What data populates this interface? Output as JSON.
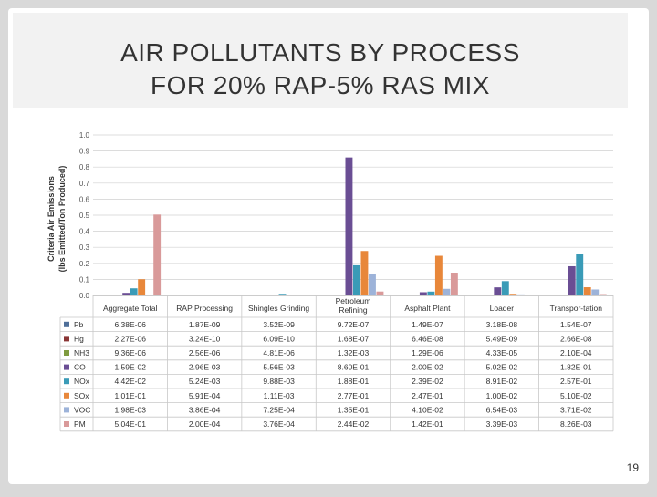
{
  "slide": {
    "title_line1": "AIR POLLUTANTS BY PROCESS",
    "title_line2": "FOR 20% RAP-5% RAS MIX",
    "page_number": "19"
  },
  "chart_data": {
    "type": "bar",
    "ylabel_line1": "Criteria Air Emissions",
    "ylabel_line2": "(lbs Emitted/Ton Produced)",
    "ylim": [
      0,
      1.0
    ],
    "yticks": [
      "0.0",
      "0.1",
      "0.2",
      "0.3",
      "0.4",
      "0.5",
      "0.6",
      "0.7",
      "0.8",
      "0.9",
      "1.0"
    ],
    "grid": true,
    "legend": "table-left",
    "categories": [
      "Aggregate Total",
      "RAP Processing",
      "Shingles Grinding",
      "Petroleum Refining",
      "Asphalt Plant",
      "Loader",
      "Transpor-tation"
    ],
    "series": [
      {
        "name": "Pb",
        "color": "#4f6f99",
        "values": [
          6.38e-06,
          1.87e-09,
          3.52e-09,
          9.72e-07,
          1.49e-07,
          3.18e-08,
          1.54e-07
        ],
        "labels": [
          "6.38E-06",
          "1.87E-09",
          "3.52E-09",
          "9.72E-07",
          "1.49E-07",
          "3.18E-08",
          "1.54E-07"
        ]
      },
      {
        "name": "Hg",
        "color": "#8a3535",
        "values": [
          2.27e-06,
          3.24e-10,
          6.09e-10,
          1.68e-07,
          6.46e-08,
          5.49e-09,
          2.66e-08
        ],
        "labels": [
          "2.27E-06",
          "3.24E-10",
          "6.09E-10",
          "1.68E-07",
          "6.46E-08",
          "5.49E-09",
          "2.66E-08"
        ]
      },
      {
        "name": "NH3",
        "color": "#7f9b3f",
        "values": [
          9.36e-06,
          2.56e-06,
          4.81e-06,
          0.00132,
          1.29e-06,
          4.33e-05,
          0.00021
        ],
        "labels": [
          "9.36E-06",
          "2.56E-06",
          "4.81E-06",
          "1.32E-03",
          "1.29E-06",
          "4.33E-05",
          "2.10E-04"
        ]
      },
      {
        "name": "CO",
        "color": "#6a4e94",
        "values": [
          0.0159,
          0.00296,
          0.00556,
          0.86,
          0.02,
          0.0502,
          0.182
        ],
        "labels": [
          "1.59E-02",
          "2.96E-03",
          "5.56E-03",
          "8.60E-01",
          "2.00E-02",
          "5.02E-02",
          "1.82E-01"
        ]
      },
      {
        "name": "NOx",
        "color": "#3a9bb7",
        "values": [
          0.0442,
          0.00524,
          0.00988,
          0.188,
          0.0239,
          0.0891,
          0.257
        ],
        "labels": [
          "4.42E-02",
          "5.24E-03",
          "9.88E-03",
          "1.88E-01",
          "2.39E-02",
          "8.91E-02",
          "2.57E-01"
        ]
      },
      {
        "name": "SOx",
        "color": "#e8873a",
        "values": [
          0.101,
          0.000591,
          0.00111,
          0.277,
          0.247,
          0.01,
          0.051
        ],
        "labels": [
          "1.01E-01",
          "5.91E-04",
          "1.11E-03",
          "2.77E-01",
          "2.47E-01",
          "1.00E-02",
          "5.10E-02"
        ]
      },
      {
        "name": "VOC",
        "color": "#9db3d9",
        "values": [
          0.00198,
          0.000386,
          0.000725,
          0.135,
          0.041,
          0.00654,
          0.0371
        ],
        "labels": [
          "1.98E-03",
          "3.86E-04",
          "7.25E-04",
          "1.35E-01",
          "4.10E-02",
          "6.54E-03",
          "3.71E-02"
        ]
      },
      {
        "name": "PM",
        "color": "#d99a9a",
        "values": [
          0.504,
          0.0002,
          0.000376,
          0.0244,
          0.142,
          0.00339,
          0.00826
        ],
        "labels": [
          "5.04E-01",
          "2.00E-04",
          "3.76E-04",
          "2.44E-02",
          "1.42E-01",
          "3.39E-03",
          "8.26E-03"
        ]
      }
    ]
  }
}
